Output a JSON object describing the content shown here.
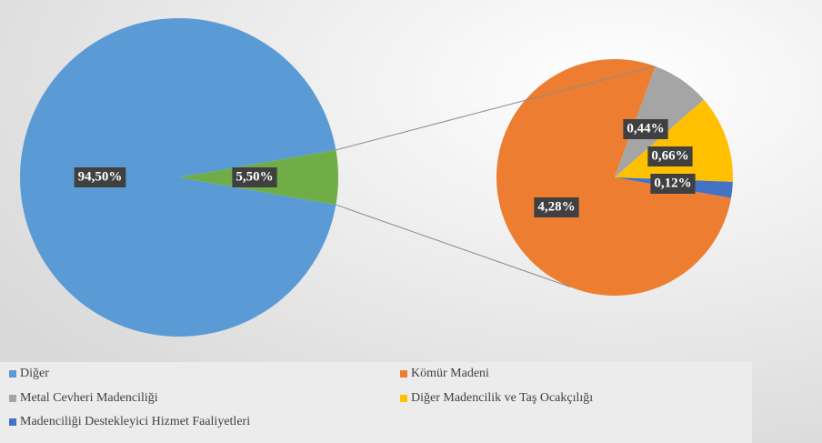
{
  "chart_data": {
    "type": "pie",
    "categories": [
      "Diğer",
      "Kömür Madeni",
      "Metal Cevheri Madenciliği",
      "Diğer Madencilik ve Taş Ocakçılığı",
      "Madenciliği Destekleyici Hizmet Faaliyetleri"
    ],
    "values": [
      94.5,
      4.28,
      0.44,
      0.66,
      0.12
    ],
    "value_labels": [
      "94,50%",
      "4,28%",
      "0,44%",
      "0,66%",
      "0,12%"
    ],
    "colors": [
      "#5b9bd5",
      "#ed7d31",
      "#a5a5a5",
      "#ffc000",
      "#4472c4"
    ],
    "split": {
      "value": 5.5,
      "value_label": "5,50%",
      "color": "#70ad47"
    },
    "legend": "bottom"
  }
}
